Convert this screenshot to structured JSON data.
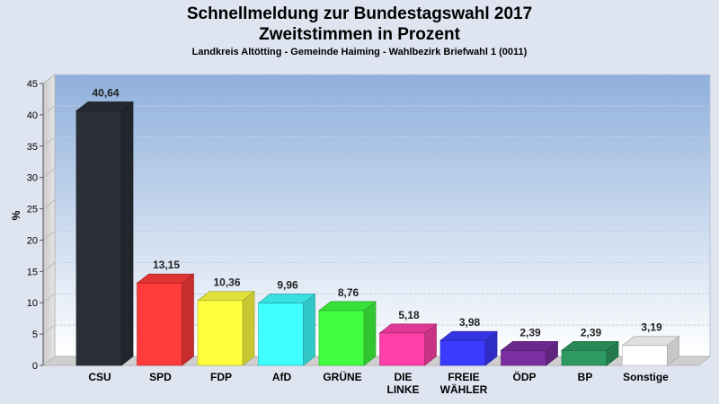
{
  "chart_data": {
    "type": "bar",
    "title_lines": [
      "Schnellmeldung zur Bundestagswahl 2017",
      "Zweitstimmen in Prozent"
    ],
    "subtitle": "Landkreis Altötting - Gemeinde Haiming - Wahlbezirk Briefwahl 1 (0011)",
    "ylabel": "%",
    "ylim": [
      0,
      45
    ],
    "yticks": [
      "0",
      "5",
      "10",
      "15",
      "20",
      "25",
      "30",
      "35",
      "40",
      "45"
    ],
    "grid": true,
    "categories": [
      "CSU",
      "SPD",
      "FDP",
      "AfD",
      "GRÜNE",
      "DIE LINKE",
      "FREIE WÄHLER",
      "ÖDP",
      "BP",
      "Sonstige"
    ],
    "values": [
      40.64,
      13.15,
      10.36,
      9.96,
      8.76,
      5.18,
      3.98,
      2.39,
      2.39,
      3.19
    ],
    "value_labels": [
      "40,64",
      "13,15",
      "10,36",
      "9,96",
      "8,76",
      "5,18",
      "3,98",
      "2,39",
      "2,39",
      "3,19"
    ],
    "colors": [
      "#2a2f38",
      "#ff3b3b",
      "#ffff40",
      "#40ffff",
      "#40ff40",
      "#ff40aa",
      "#3b3bff",
      "#7a2fa0",
      "#2e9a62",
      "#ffffff"
    ]
  }
}
